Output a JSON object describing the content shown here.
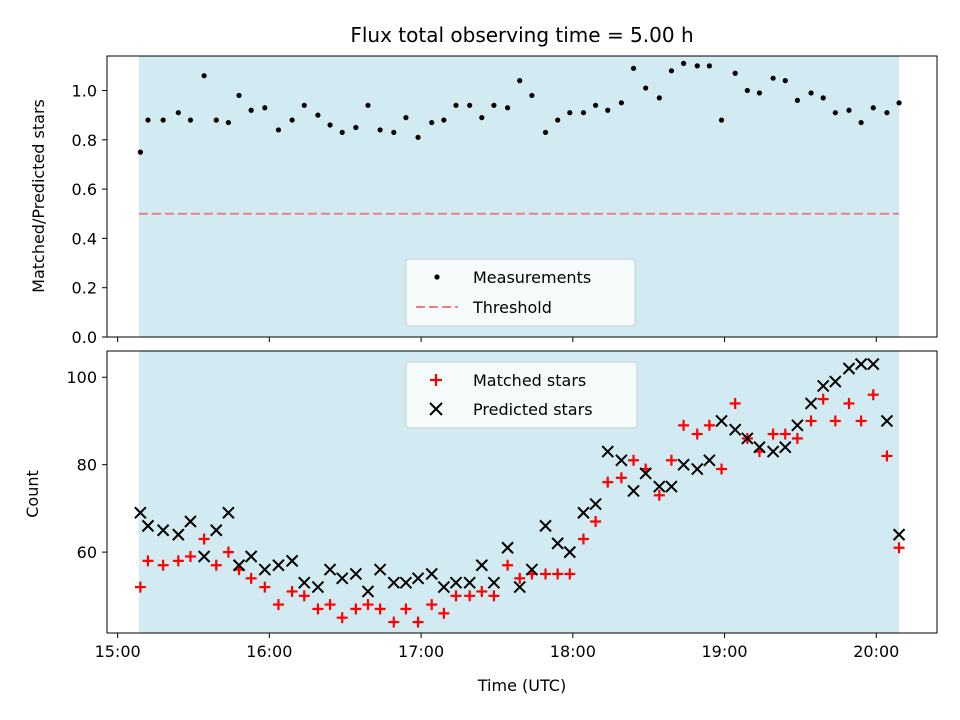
{
  "chart_data": {
    "type": "scatter",
    "title": "Flux total observing time = 5.00 h",
    "colors": {
      "shade": "#add8e6",
      "measurement": "#000000",
      "threshold": "#f08080",
      "matched": "#ff0000",
      "predicted": "#000000"
    },
    "x_ticks": [
      "15:00",
      "16:00",
      "17:00",
      "18:00",
      "19:00",
      "20:00"
    ],
    "x_tick_hours": [
      15,
      16,
      17,
      18,
      19,
      20
    ],
    "xlim_hours": [
      14.93,
      20.4
    ],
    "shade_range_hours": [
      15.14,
      20.15
    ],
    "xlabel": "Time (UTC)",
    "top": {
      "ylabel": "Matched/Predicted stars",
      "ylim": [
        0,
        1.14
      ],
      "yticks": [
        "0.0",
        "0.2",
        "0.4",
        "0.6",
        "0.8",
        "1.0"
      ],
      "ytick_values": [
        0,
        0.2,
        0.4,
        0.6,
        0.8,
        1.0
      ],
      "threshold": 0.5,
      "threshold_x_hours": [
        15.14,
        20.15
      ],
      "legend": {
        "placement": "lower-center",
        "measurements": "Measurements",
        "threshold": "Threshold"
      },
      "x_hours": [
        15.15,
        15.2,
        15.3,
        15.4,
        15.48,
        15.57,
        15.65,
        15.73,
        15.8,
        15.88,
        15.97,
        16.06,
        16.15,
        16.23,
        16.32,
        16.4,
        16.48,
        16.57,
        16.65,
        16.73,
        16.82,
        16.9,
        16.98,
        17.07,
        17.15,
        17.23,
        17.32,
        17.4,
        17.48,
        17.57,
        17.65,
        17.73,
        17.82,
        17.9,
        17.98,
        18.07,
        18.15,
        18.23,
        18.32,
        18.4,
        18.48,
        18.57,
        18.65,
        18.73,
        18.82,
        18.9,
        18.98,
        19.07,
        19.15,
        19.23,
        19.32,
        19.4,
        19.48,
        19.57,
        19.65,
        19.73,
        19.82,
        19.9,
        19.98,
        20.07,
        20.15
      ],
      "ratio": [
        0.75,
        0.88,
        0.88,
        0.91,
        0.88,
        1.06,
        0.88,
        0.87,
        0.98,
        0.92,
        0.93,
        0.84,
        0.88,
        0.94,
        0.9,
        0.86,
        0.83,
        0.85,
        0.94,
        0.84,
        0.83,
        0.89,
        0.81,
        0.87,
        0.88,
        0.94,
        0.94,
        0.89,
        0.94,
        0.93,
        1.04,
        0.98,
        0.83,
        0.88,
        0.91,
        0.91,
        0.94,
        0.92,
        0.95,
        1.09,
        1.01,
        0.97,
        1.08,
        1.11,
        1.1,
        1.1,
        0.88,
        1.07,
        1.0,
        0.99,
        1.05,
        1.04,
        0.96,
        0.99,
        0.97,
        0.91,
        0.92,
        0.87,
        0.93,
        0.91,
        0.95
      ]
    },
    "bottom": {
      "ylabel": "Count",
      "ylim": [
        41.5,
        106
      ],
      "yticks": [
        "60",
        "80",
        "100"
      ],
      "ytick_values": [
        60,
        80,
        100
      ],
      "legend": {
        "placement": "top-center",
        "matched": "Matched stars",
        "predicted": "Predicted stars"
      },
      "matched": [
        52,
        58,
        57,
        58,
        59,
        63,
        57,
        60,
        56,
        54,
        52,
        48,
        51,
        50,
        47,
        48,
        45,
        47,
        48,
        47,
        44,
        47,
        44,
        48,
        46,
        50,
        50,
        51,
        50,
        57,
        54,
        55,
        55,
        55,
        55,
        63,
        67,
        76,
        77,
        81,
        79,
        73,
        81,
        89,
        87,
        89,
        79,
        94,
        86,
        83,
        87,
        87,
        86,
        90,
        95,
        90,
        94,
        90,
        96,
        82,
        61
      ],
      "predicted": [
        69,
        66,
        65,
        64,
        67,
        59,
        65,
        69,
        57,
        59,
        56,
        57,
        58,
        53,
        52,
        56,
        54,
        55,
        51,
        56,
        53,
        53,
        54,
        55,
        52,
        53,
        53,
        57,
        53,
        61,
        52,
        56,
        66,
        62,
        60,
        69,
        71,
        83,
        81,
        74,
        78,
        75,
        75,
        80,
        79,
        81,
        90,
        88,
        86,
        84,
        83,
        84,
        89,
        94,
        98,
        99,
        102,
        103,
        103,
        90,
        64
      ]
    }
  }
}
